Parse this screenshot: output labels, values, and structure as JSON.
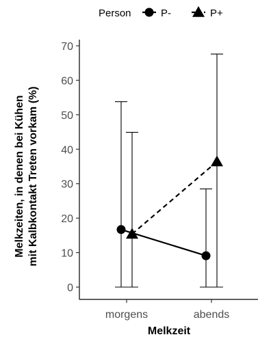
{
  "chart_data": {
    "type": "line",
    "xlabel": "Melkzeit",
    "ylabel_lines": [
      "Melkzeiten, in denen bei Kühen",
      "mit Kalbkontakt Treten vorkam (%)"
    ],
    "categories": [
      "morgens",
      "abends"
    ],
    "ylim": [
      0,
      70
    ],
    "yticks": [
      0,
      10,
      20,
      30,
      40,
      50,
      60,
      70
    ],
    "grid": false,
    "legend": {
      "title": "Person",
      "position": "top"
    },
    "series": [
      {
        "name": "P-",
        "marker": "circle",
        "line": "solid",
        "values": [
          16.7,
          9.1
        ],
        "error_low": [
          0,
          0
        ],
        "error_high": [
          53.8,
          28.5
        ]
      },
      {
        "name": "P+",
        "marker": "triangle",
        "line": "dashed",
        "values": [
          15.4,
          36.4
        ],
        "error_low": [
          0,
          0
        ],
        "error_high": [
          44.9,
          67.6
        ]
      }
    ]
  }
}
